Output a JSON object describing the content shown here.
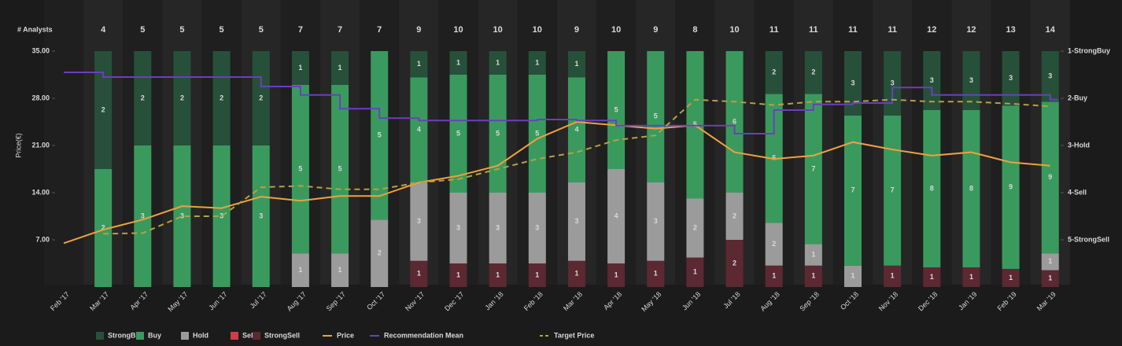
{
  "chart_data": {
    "type": "bar",
    "y_label": "Price(€)",
    "categories": [
      "Feb '17",
      "Mar '17",
      "Apr '17",
      "May '17",
      "Jun '17",
      "Jul '17",
      "Aug '17",
      "Sep '17",
      "Oct '17",
      "Nov '17",
      "Dec '17",
      "Jan '18",
      "Feb '18",
      "Mar '18",
      "Apr '18",
      "May '18",
      "Jun '18",
      "Jul '18",
      "Aug '18",
      "Sep '18",
      "Oct '18",
      "Nov '18",
      "Dec '18",
      "Jan '19",
      "Feb '19",
      "Mar '19"
    ],
    "analysts": {
      "label": "# Analysts",
      "values": [
        null,
        4,
        5,
        5,
        5,
        5,
        7,
        7,
        7,
        9,
        10,
        10,
        10,
        9,
        10,
        9,
        8,
        10,
        11,
        11,
        11,
        11,
        12,
        12,
        13,
        14
      ]
    },
    "ylim": [
      0,
      35
    ],
    "yticks": [
      {
        "value": 7,
        "label": "7.00"
      },
      {
        "value": 14,
        "label": "14.00"
      },
      {
        "value": 21,
        "label": "21.00"
      },
      {
        "value": 28,
        "label": "28.00"
      },
      {
        "value": 35,
        "label": "35.00"
      }
    ],
    "y2lim": [
      6,
      1
    ],
    "y2ticks": [
      {
        "value": 1,
        "label": "1-StrongBuy"
      },
      {
        "value": 2,
        "label": "2-Buy"
      },
      {
        "value": 3,
        "label": "3-Hold"
      },
      {
        "value": 4,
        "label": "4-Sell"
      },
      {
        "value": 5,
        "label": "5-StrongSell"
      }
    ],
    "series": [
      {
        "name": "StrongBuy",
        "type": "bar",
        "color": "#27503a",
        "values": [
          null,
          2,
          2,
          2,
          2,
          2,
          1,
          1,
          0,
          1,
          1,
          1,
          1,
          1,
          0,
          0,
          0,
          0,
          2,
          2,
          3,
          3,
          3,
          3,
          3,
          3
        ]
      },
      {
        "name": "Buy",
        "type": "bar",
        "color": "#3a9a5e",
        "values": [
          null,
          2,
          3,
          3,
          3,
          3,
          5,
          5,
          5,
          4,
          5,
          5,
          5,
          4,
          5,
          5,
          5,
          6,
          6,
          7,
          7,
          7,
          8,
          8,
          9,
          9
        ]
      },
      {
        "name": "Hold",
        "type": "bar",
        "color": "#9b9b9b",
        "values": [
          null,
          0,
          0,
          0,
          0,
          0,
          1,
          1,
          2,
          3,
          3,
          3,
          3,
          3,
          4,
          3,
          2,
          2,
          2,
          1,
          1,
          0,
          0,
          0,
          0,
          1
        ]
      },
      {
        "name": "Sell",
        "type": "bar",
        "color": "#d23c4a",
        "values": [
          null,
          0,
          0,
          0,
          0,
          0,
          0,
          0,
          0,
          0,
          0,
          0,
          0,
          0,
          0,
          0,
          0,
          0,
          0,
          0,
          0,
          0,
          0,
          0,
          0,
          0
        ]
      },
      {
        "name": "StrongSell",
        "type": "bar",
        "color": "#5c2832",
        "values": [
          null,
          0,
          0,
          0,
          0,
          0,
          0,
          0,
          0,
          1,
          1,
          1,
          1,
          1,
          1,
          1,
          1,
          2,
          1,
          1,
          0,
          1,
          1,
          1,
          1,
          1
        ]
      },
      {
        "name": "Price",
        "type": "line",
        "color": "#f0a040",
        "values": [
          6.5,
          8.5,
          10,
          12,
          11.7,
          13.4,
          12.8,
          13.5,
          13.5,
          15.5,
          16.5,
          18,
          22,
          24.5,
          24,
          23.5,
          24,
          20,
          19,
          19.5,
          21.5,
          20.4,
          19.5,
          20,
          18.5,
          18
        ]
      },
      {
        "name": "Recommendation Mean",
        "type": "step",
        "axis": "y2",
        "color": "#6a3fc0",
        "values": [
          1.45,
          1.55,
          1.55,
          1.55,
          1.55,
          1.75,
          1.93,
          2.22,
          2.42,
          2.47,
          2.47,
          2.47,
          2.45,
          2.47,
          2.58,
          2.58,
          2.58,
          2.75,
          2.25,
          2.13,
          2.1,
          1.77,
          1.93,
          1.93,
          1.93,
          2.03
        ]
      },
      {
        "name": "Target Price",
        "type": "dashed",
        "color": "#b8a040",
        "values": [
          null,
          7.9,
          8,
          10.5,
          10.5,
          14.8,
          15,
          14.5,
          14.5,
          15.5,
          16,
          17.5,
          19,
          20,
          21.8,
          22.5,
          27.8,
          27.5,
          27,
          27.5,
          27.5,
          27.8,
          27.5,
          27.5,
          27.2,
          26.8
        ]
      }
    ]
  }
}
